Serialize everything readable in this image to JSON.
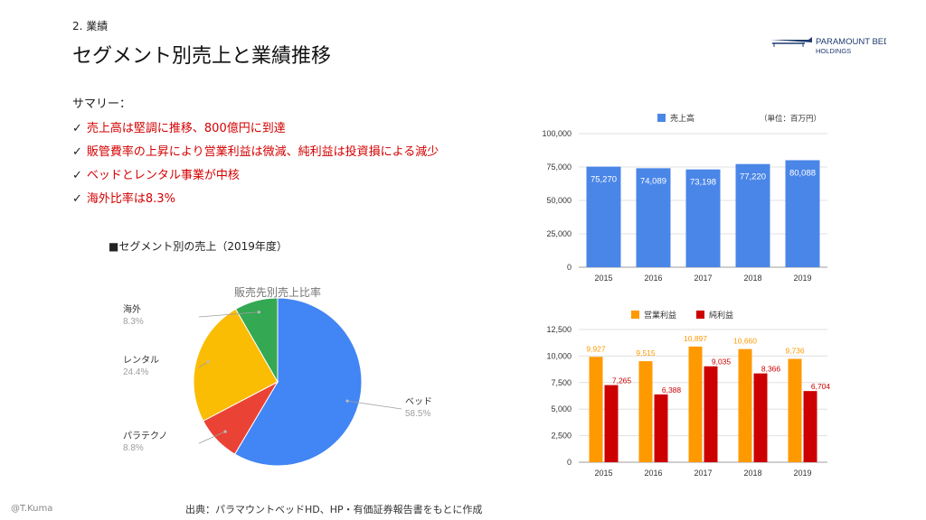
{
  "header": {
    "section": "2. 業績",
    "title": "セグメント別売上と業績推移",
    "logo_line1": "PARAMOUNT BED",
    "logo_line2": "HOLDINGS"
  },
  "summary": {
    "heading": "サマリー：",
    "check_glyph": "✓",
    "items": [
      "売上高は堅調に推移、800億円に到達",
      "販管費率の上昇により営業利益は微減、純利益は投資損による減少",
      "ベッドとレンタル事業が中核",
      "海外比率は8.3%"
    ]
  },
  "segment_caption": "■セグメント別の売上（2019年度）",
  "footer": {
    "credit": "@T.Kuma",
    "source": "出典：パラマウントベッドHD、HP・有価証券報告書をもとに作成"
  },
  "colors": {
    "accent_red": "#d40000",
    "revenue_blue": "#4a86e8",
    "operating_orange": "#ff9900",
    "net_red": "#cc0000"
  },
  "chart_data": [
    {
      "type": "pie",
      "title": "販売先別売上比率",
      "slices": [
        {
          "label": "ベッド",
          "value": 58.5,
          "value_label": "58.5%",
          "color": "#4285f4"
        },
        {
          "label": "パラテクノ",
          "value": 8.8,
          "value_label": "8.8%",
          "color": "#ea4335"
        },
        {
          "label": "レンタル",
          "value": 24.4,
          "value_label": "24.4%",
          "color": "#fbbc04"
        },
        {
          "label": "海外",
          "value": 8.3,
          "value_label": "8.3%",
          "color": "#34a853"
        }
      ]
    },
    {
      "type": "bar",
      "unit_note": "（単位：百万円）",
      "categories": [
        "2015",
        "2016",
        "2017",
        "2018",
        "2019"
      ],
      "series": [
        {
          "name": "売上高",
          "values": [
            75270,
            74089,
            73198,
            77220,
            80088
          ],
          "labels": [
            "75,270",
            "74,089",
            "73,198",
            "77,220",
            "80,088"
          ],
          "color": "#4a86e8"
        }
      ],
      "ylim": [
        0,
        100000
      ],
      "yticks": [
        0,
        25000,
        50000,
        75000,
        100000
      ],
      "ytick_labels": [
        "0",
        "25,000",
        "50,000",
        "75,000",
        "100,000"
      ],
      "legend": "top",
      "grid": true
    },
    {
      "type": "bar",
      "categories": [
        "2015",
        "2016",
        "2017",
        "2018",
        "2019"
      ],
      "series": [
        {
          "name": "営業利益",
          "values": [
            9927,
            9515,
            10897,
            10660,
            9736
          ],
          "labels": [
            "9,927",
            "9,515",
            "10,897",
            "10,660",
            "9,736"
          ],
          "color": "#ff9900"
        },
        {
          "name": "純利益",
          "values": [
            7265,
            6388,
            9035,
            8366,
            6704
          ],
          "labels": [
            "7,265",
            "6,388",
            "9,035",
            "8,366",
            "6,704"
          ],
          "color": "#cc0000"
        }
      ],
      "ylim": [
        0,
        12500
      ],
      "yticks": [
        0,
        2500,
        5000,
        7500,
        10000,
        12500
      ],
      "ytick_labels": [
        "0",
        "2,500",
        "5,000",
        "7,500",
        "10,000",
        "12,500"
      ],
      "legend": "top",
      "grid": true
    }
  ]
}
